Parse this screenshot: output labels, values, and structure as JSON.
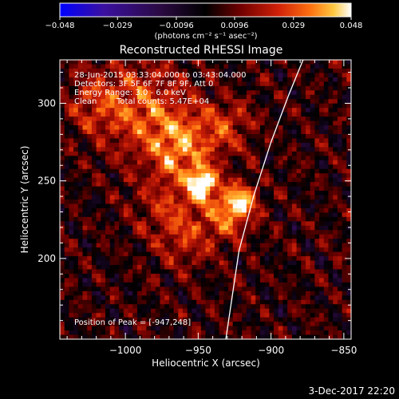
{
  "chart_data": {
    "type": "heatmap",
    "title": "Reconstructed RHESSI Image",
    "colorbar": {
      "ticks": [
        "−0.048",
        "−0.029",
        "−0.0096",
        "0.0096",
        "0.029",
        "0.048"
      ],
      "range": [
        -0.048,
        0.048
      ],
      "unit_label": "(photons cm⁻² s⁻¹ asec⁻²)",
      "colormap": [
        "#0000ff",
        "#3a10a0",
        "#2a0a40",
        "#000000",
        "#600000",
        "#c81808",
        "#ff6010",
        "#ffc040",
        "#ffffff"
      ]
    },
    "annotations": {
      "time_range": "28-Jun-2015 03:33:04.000 to 03:43:04.000",
      "detectors": "Detectors: 3F 5F 6F 7F 8F 9F, Att 0",
      "energy": "Energy Range: 3.0 - 6.0 keV",
      "algorithm": "Clean",
      "total_counts": "Total counts: 5.47E+04",
      "peak": "Position of Peak = [-947,248]"
    },
    "xlabel": "Heliocentric X (arcsec)",
    "ylabel": "Heliocentric Y (arcsec)",
    "xlim": [
      -1045,
      -845
    ],
    "ylim": [
      148,
      328
    ],
    "xticks": [
      {
        "label": "−1000",
        "value": -1000
      },
      {
        "label": "−950",
        "value": -950
      },
      {
        "label": "−900",
        "value": -900
      },
      {
        "label": "−850",
        "value": -850
      }
    ],
    "yticks": [
      {
        "label": "200",
        "value": 200
      },
      {
        "label": "250",
        "value": 250
      },
      {
        "label": "300",
        "value": 300
      }
    ],
    "peak": {
      "x": -947,
      "y": 248
    },
    "sources": [
      {
        "x": -947,
        "y": 248,
        "amp": 0.048,
        "sigma": 7
      },
      {
        "x": -920,
        "y": 238,
        "amp": 0.03,
        "sigma": 8
      },
      {
        "x": -930,
        "y": 228,
        "amp": 0.026,
        "sigma": 11
      },
      {
        "x": -960,
        "y": 270,
        "amp": 0.026,
        "sigma": 15
      },
      {
        "x": -985,
        "y": 295,
        "amp": 0.024,
        "sigma": 22
      },
      {
        "x": -1020,
        "y": 300,
        "amp": 0.016,
        "sigma": 14
      },
      {
        "x": -930,
        "y": 285,
        "amp": 0.018,
        "sigma": 12
      },
      {
        "x": -958,
        "y": 215,
        "amp": 0.018,
        "sigma": 14
      },
      {
        "x": -975,
        "y": 235,
        "amp": 0.014,
        "sigma": 14
      }
    ],
    "limb": [
      [
        -931,
        148
      ],
      [
        -922,
        205
      ],
      [
        -912,
        240
      ],
      [
        -900,
        275
      ],
      [
        -888,
        305
      ],
      [
        -878,
        328
      ]
    ],
    "colorbar_note": ""
  },
  "footer": {
    "date": "3-Dec-2017 22:20"
  }
}
